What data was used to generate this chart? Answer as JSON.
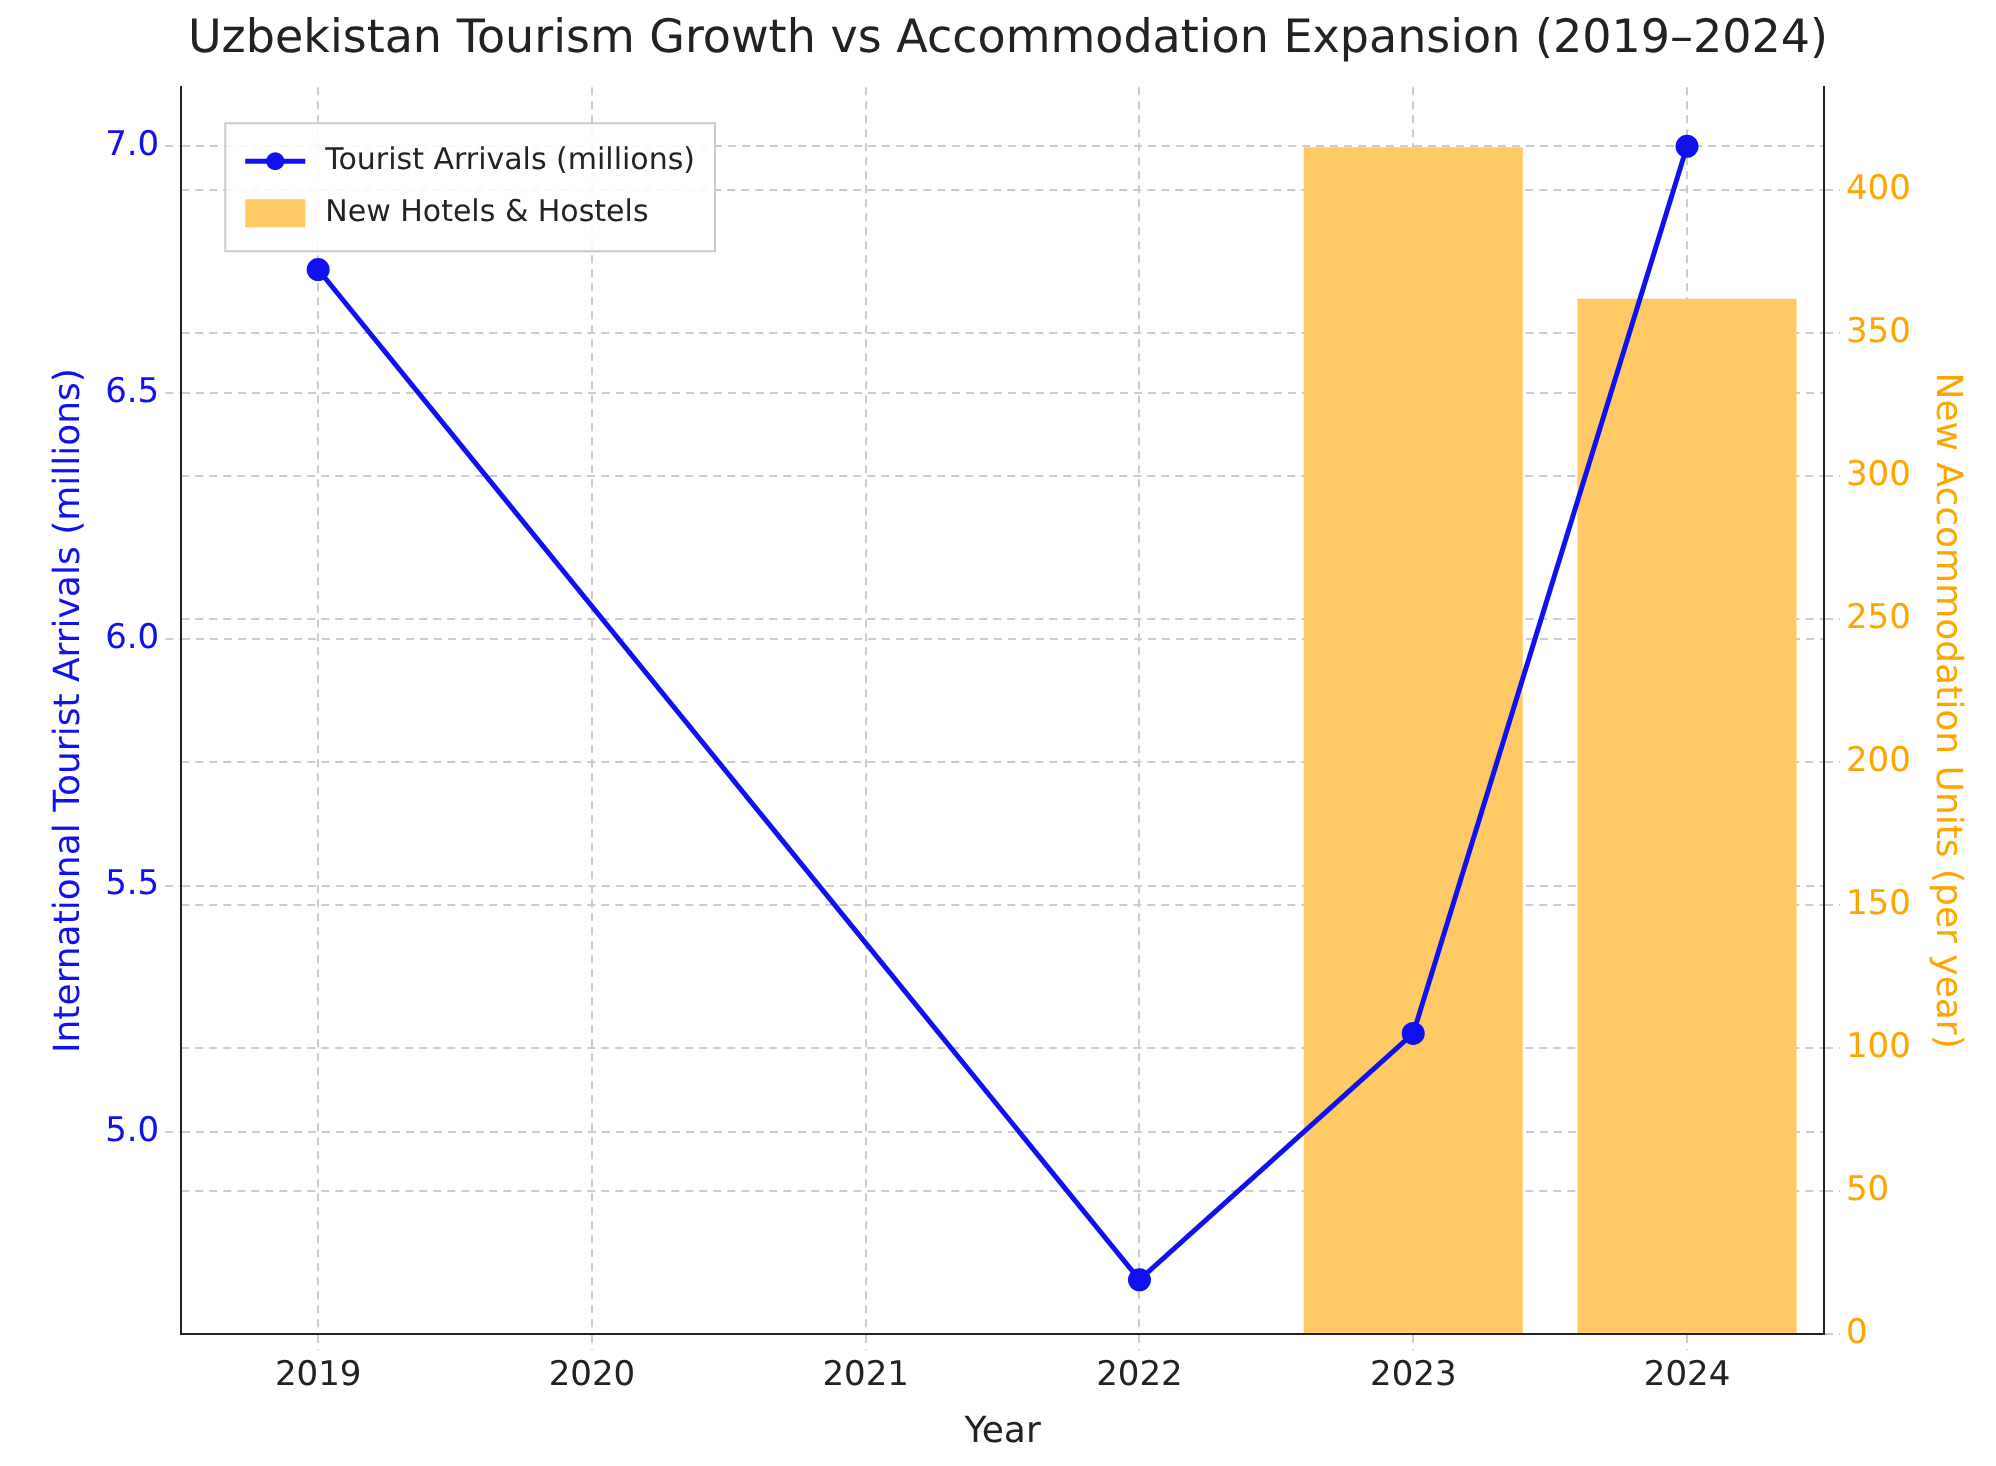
{
  "chart_data": {
    "type": "line",
    "title": "Uzbekistan Tourism Growth vs Accommodation Expansion (2019–2024)",
    "xlabel": "Year",
    "ylabel": "International Tourist Arrivals (millions)",
    "y2label": "New Accommodation Units (per year)",
    "categories": [
      "2019",
      "2020",
      "2021",
      "2022",
      "2023",
      "2024"
    ],
    "series": [
      {
        "name": "Tourist Arrivals (millions)",
        "color": "#1010f0",
        "values": [
          6.75,
          null,
          null,
          4.7,
          5.2,
          7.0
        ]
      },
      {
        "name": "New Hotels & Hostels",
        "type": "bar",
        "axis": "y2",
        "color": "#ffc966",
        "values": [
          null,
          null,
          null,
          null,
          415,
          362
        ]
      }
    ],
    "ylim": [
      4.59,
      7.12
    ],
    "yticks": [
      {
        "value": 5,
        "label": "5.0"
      },
      {
        "value": 5.5,
        "label": "5.5"
      },
      {
        "value": 6,
        "label": "6.0"
      },
      {
        "value": 6.5,
        "label": "6.5"
      },
      {
        "value": 7,
        "label": "7.0"
      }
    ],
    "y2lim": [
      0,
      436
    ],
    "y2ticks": [
      0,
      50,
      100,
      150,
      200,
      250,
      300,
      350,
      400
    ],
    "grid": true,
    "legend": "top left",
    "marker": "circle",
    "line_style": "solid"
  }
}
